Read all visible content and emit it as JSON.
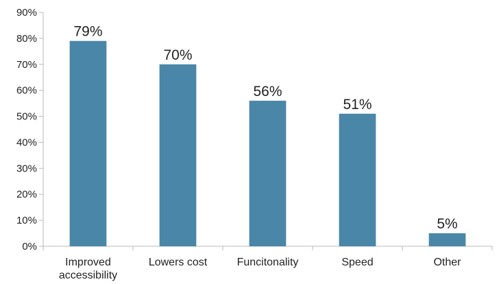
{
  "chart_data": {
    "type": "bar",
    "categories": [
      [
        "Improved",
        "accessibility"
      ],
      [
        "Lowers cost"
      ],
      [
        "Funcitonality"
      ],
      [
        "Speed"
      ],
      [
        "Other"
      ]
    ],
    "values": [
      79,
      70,
      56,
      51,
      5
    ],
    "data_labels": [
      "79%",
      "70%",
      "56%",
      "51%",
      "5%"
    ],
    "y_ticks": [
      "0%",
      "10%",
      "20%",
      "30%",
      "40%",
      "50%",
      "60%",
      "70%",
      "80%",
      "90%"
    ],
    "ylim": [
      0,
      90
    ],
    "grid": false,
    "legend": "none",
    "bar_color": "#4a86a8",
    "axis_color": "#b8b8b8"
  }
}
